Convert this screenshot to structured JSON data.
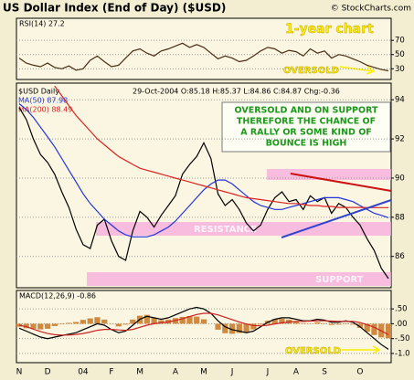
{
  "chart_data": [
    {
      "type": "line",
      "series": [
        {
          "name": "RSI(14) 27.2",
          "color": "#4a2e14",
          "values": [
            45,
            38,
            35,
            33,
            38,
            32,
            30,
            34,
            28,
            30,
            42,
            48,
            40,
            33,
            35,
            45,
            55,
            58,
            52,
            48,
            55,
            58,
            62,
            66,
            60,
            64,
            60,
            52,
            44,
            48,
            45,
            40,
            42,
            48,
            55,
            60,
            58,
            52,
            56,
            54,
            48,
            58,
            52,
            55,
            45,
            50,
            48,
            44,
            40,
            35,
            32,
            29,
            27.2
          ]
        }
      ],
      "ylim": [
        15,
        101
      ],
      "yticks": [
        30,
        50,
        70
      ],
      "grid": true,
      "annotations": [
        "1-year chart",
        "OVERSOLD"
      ]
    },
    {
      "type": "line",
      "title": "US Dollar Index (End of Day) ($USD)",
      "credit": "© StockCharts.com",
      "quote": "29-Oct-2004 O:85.18 H:85.37 L:84.86 C:84.87 Chg:-0.36",
      "series": [
        {
          "name": "$USD Daily",
          "color": "#000000",
          "values": [
            93.6,
            93.0,
            92.0,
            91.2,
            90.8,
            90.2,
            89.3,
            88.5,
            87.4,
            86.6,
            86.4,
            87.6,
            87.9,
            86.8,
            86.0,
            85.8,
            87.3,
            88.3,
            88.0,
            87.5,
            88.1,
            88.6,
            89.1,
            90.2,
            90.7,
            91.1,
            91.8,
            91.0,
            89.2,
            88.6,
            88.9,
            88.4,
            87.7,
            87.3,
            87.6,
            88.4,
            89.0,
            89.3,
            88.8,
            88.9,
            88.4,
            89.1,
            88.8,
            89.0,
            88.2,
            88.7,
            88.5,
            88.0,
            87.6,
            86.9,
            86.3,
            85.4,
            84.87
          ]
        },
        {
          "name": "MA(50) 87.98",
          "color": "#2233dd",
          "values": [
            93.8,
            93.5,
            93.1,
            92.6,
            92.1,
            91.6,
            91.0,
            90.4,
            89.8,
            89.2,
            88.7,
            88.3,
            87.9,
            87.6,
            87.3,
            87.1,
            87.0,
            87.0,
            87.0,
            87.1,
            87.3,
            87.5,
            87.8,
            88.2,
            88.6,
            89.0,
            89.4,
            89.7,
            89.9,
            89.9,
            89.7,
            89.4,
            89.1,
            88.8,
            88.6,
            88.5,
            88.4,
            88.4,
            88.5,
            88.6,
            88.7,
            88.8,
            88.9,
            89.0,
            89.0,
            89.0,
            88.9,
            88.8,
            88.6,
            88.4,
            88.2,
            88.1,
            87.98
          ]
        },
        {
          "name": "MA(200) 88.49",
          "color": "#dd2222",
          "values": [
            null,
            null,
            null,
            null,
            null,
            94.7,
            94.2,
            93.7,
            93.2,
            92.8,
            92.4,
            92.0,
            91.7,
            91.4,
            91.1,
            90.9,
            90.7,
            90.5,
            90.4,
            90.3,
            90.2,
            90.1,
            90.0,
            89.9,
            89.8,
            89.7,
            89.6,
            89.5,
            89.4,
            89.3,
            89.2,
            89.1,
            89.0,
            88.95,
            88.9,
            88.85,
            88.8,
            88.75,
            88.7,
            88.7,
            88.65,
            88.6,
            88.6,
            88.55,
            88.55,
            88.5,
            88.5,
            88.5,
            88.5,
            88.49,
            88.49,
            88.49,
            88.49
          ]
        }
      ],
      "ylim": [
        84.4,
        94.85
      ],
      "yticks": [
        86,
        88,
        90,
        92,
        94
      ],
      "grid": true,
      "callout": [
        "OVERSOLD AND ON SUPPORT",
        "THEREFORE THE CHANCE OF",
        "A RALLY OR SOME KIND OF",
        "BOUNCE IS HIGH"
      ],
      "annotations": [
        "RESISTANCE",
        "SUPPORT"
      ]
    },
    {
      "type": "line",
      "categories": [
        "N",
        null,
        null,
        null,
        "D",
        null,
        null,
        null,
        null,
        "04",
        null,
        null,
        null,
        "F",
        null,
        null,
        null,
        "M",
        null,
        null,
        null,
        null,
        "A",
        null,
        null,
        null,
        "M",
        null,
        null,
        null,
        "J",
        null,
        null,
        null,
        null,
        "J",
        null,
        null,
        null,
        "A",
        null,
        null,
        null,
        "S",
        null,
        null,
        null,
        null,
        "O",
        null,
        null,
        null,
        null
      ],
      "series": [
        {
          "name": "MACD(12,26,9) -0.86",
          "color": "#000000",
          "values": [
            -0.15,
            -0.25,
            -0.35,
            -0.45,
            -0.5,
            -0.45,
            -0.4,
            -0.35,
            -0.3,
            -0.2,
            -0.1,
            0.0,
            -0.05,
            -0.2,
            -0.3,
            -0.25,
            -0.05,
            0.15,
            0.25,
            0.2,
            0.15,
            0.2,
            0.3,
            0.4,
            0.5,
            0.55,
            0.5,
            0.35,
            0.1,
            -0.1,
            -0.2,
            -0.25,
            -0.3,
            -0.25,
            -0.1,
            0.05,
            0.15,
            0.2,
            0.2,
            0.15,
            0.1,
            0.1,
            0.15,
            0.12,
            0.05,
            0.05,
            0.1,
            0.05,
            -0.1,
            -0.3,
            -0.5,
            -0.7,
            -0.86
          ]
        },
        {
          "color": "#cc2222",
          "values": [
            -0.05,
            -0.1,
            -0.18,
            -0.26,
            -0.33,
            -0.37,
            -0.38,
            -0.38,
            -0.36,
            -0.33,
            -0.28,
            -0.22,
            -0.19,
            -0.19,
            -0.21,
            -0.22,
            -0.19,
            -0.12,
            -0.05,
            0.0,
            0.03,
            0.06,
            0.11,
            0.17,
            0.24,
            0.31,
            0.35,
            0.35,
            0.3,
            0.22,
            0.14,
            0.06,
            -0.01,
            -0.06,
            -0.07,
            -0.05,
            -0.01,
            0.03,
            0.06,
            0.08,
            0.08,
            0.09,
            0.1,
            0.1,
            0.09,
            0.08,
            0.08,
            0.08,
            0.04,
            -0.03,
            -0.12,
            -0.24,
            -0.37
          ]
        },
        {
          "color": "#d08a40",
          "style": "bar",
          "values": [
            -0.1,
            -0.15,
            -0.17,
            -0.19,
            -0.17,
            -0.08,
            -0.02,
            0.03,
            0.06,
            0.13,
            0.18,
            0.22,
            0.14,
            -0.01,
            -0.09,
            -0.03,
            0.14,
            0.27,
            0.3,
            0.2,
            0.12,
            0.14,
            0.19,
            0.23,
            0.26,
            0.24,
            0.15,
            0.0,
            -0.2,
            -0.32,
            -0.34,
            -0.31,
            -0.29,
            -0.19,
            -0.03,
            0.1,
            0.16,
            0.17,
            0.14,
            0.07,
            0.02,
            0.01,
            0.05,
            0.02,
            -0.04,
            -0.03,
            0.02,
            -0.03,
            -0.14,
            -0.27,
            -0.38,
            -0.46,
            -0.49
          ]
        }
      ],
      "ylim": [
        -1.31,
        1.12
      ],
      "yticks": [
        {
          "value": 0.5,
          "label": ".50"
        },
        {
          "value": 0,
          "label": ".00"
        },
        {
          "value": -0.5,
          "label": "-.50"
        },
        {
          "value": -1,
          "label": "-1.0"
        }
      ],
      "grid": true,
      "annotations": [
        "OVERSOLD"
      ]
    }
  ]
}
